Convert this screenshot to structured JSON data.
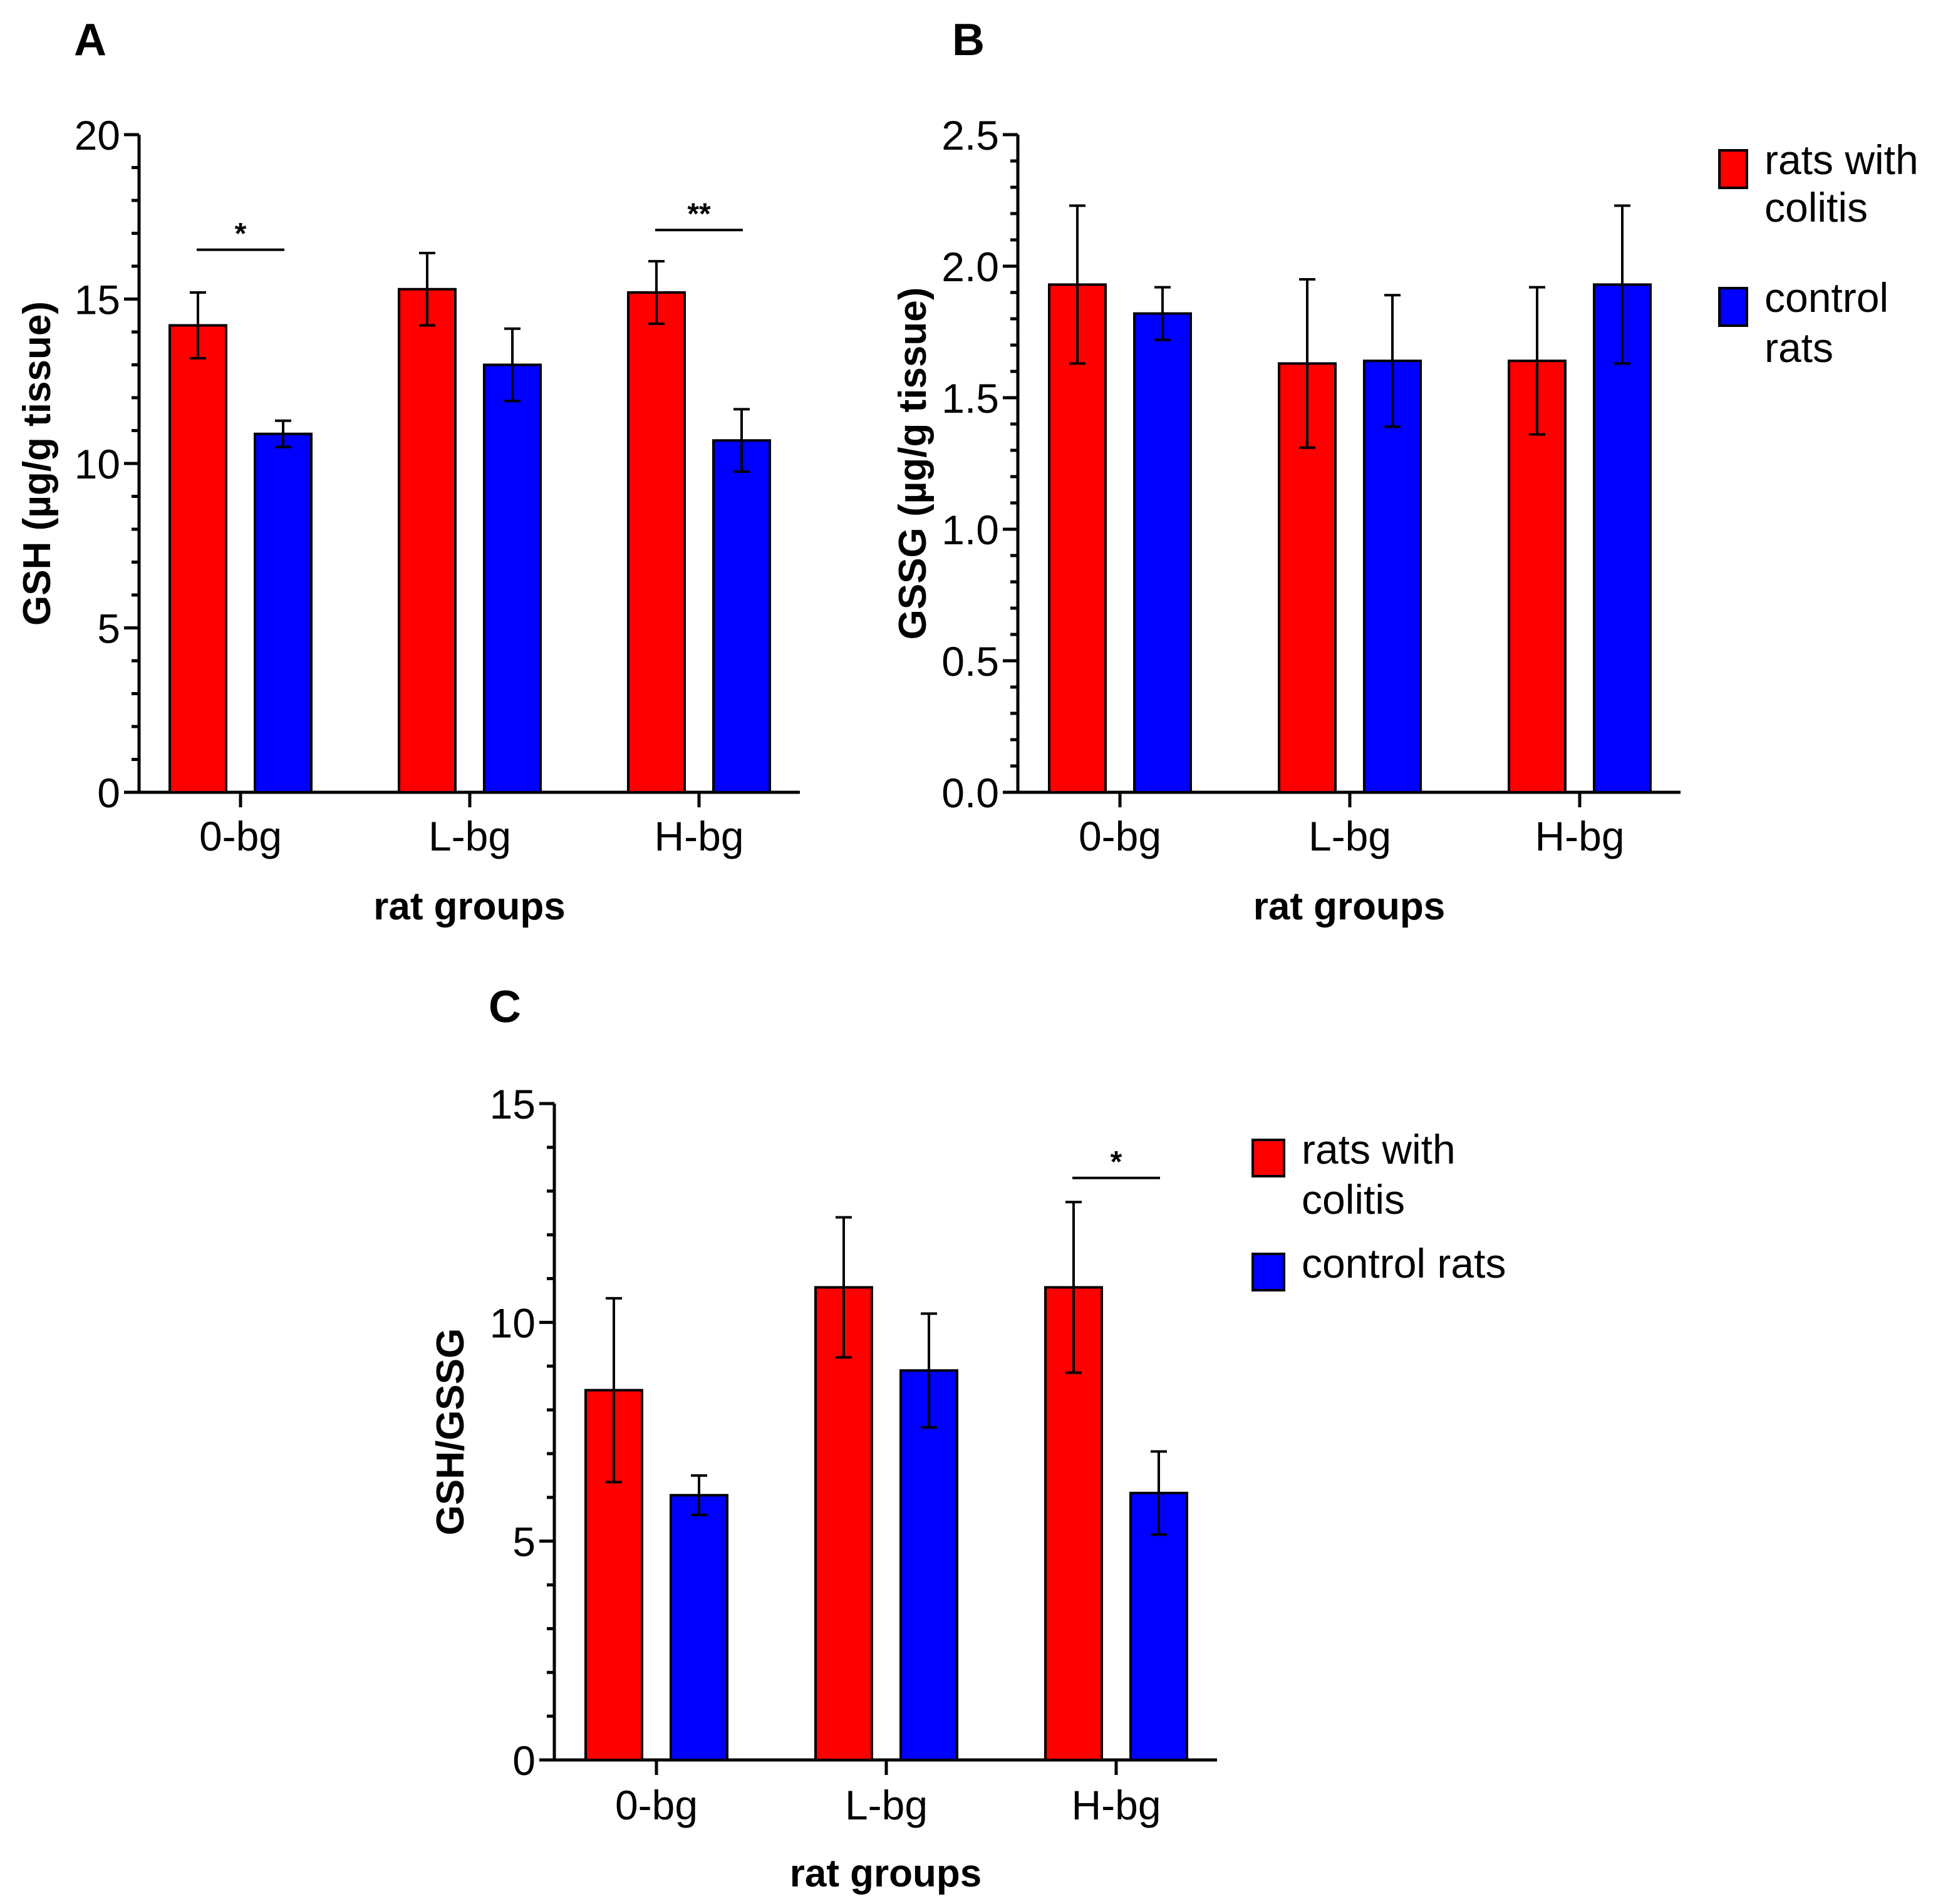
{
  "colors": {
    "colitis": "#ff0000",
    "control": "#0000ff"
  },
  "chart_data": [
    {
      "type": "bar",
      "panel": "A",
      "categories": [
        "0-bg",
        "L-bg",
        "H-bg"
      ],
      "series": [
        {
          "name": "rats with colitis",
          "values": [
            14.2,
            15.3,
            15.2
          ],
          "errors": [
            1.0,
            1.1,
            0.95
          ]
        },
        {
          "name": "control rats",
          "values": [
            10.9,
            13.0,
            10.7
          ],
          "errors": [
            0.4,
            1.1,
            0.95
          ]
        }
      ],
      "xlabel": "rat groups",
      "ylabel": "GSH (µg/g tissue)",
      "ylim": [
        0,
        20
      ],
      "yticks": [
        "0",
        "5",
        "10",
        "15",
        "20"
      ],
      "significance": [
        {
          "category": "0-bg",
          "label": "*",
          "y": 16.5
        },
        {
          "category": "H-bg",
          "label": "**",
          "y": 17.1
        }
      ],
      "legend": false
    },
    {
      "type": "bar",
      "panel": "B",
      "categories": [
        "0-bg",
        "L-bg",
        "H-bg"
      ],
      "series": [
        {
          "name": "rats with colitis",
          "values": [
            1.93,
            1.63,
            1.64
          ],
          "errors": [
            0.3,
            0.32,
            0.28
          ]
        },
        {
          "name": "control rats",
          "values": [
            1.82,
            1.64,
            1.93
          ],
          "errors": [
            0.1,
            0.25,
            0.3
          ]
        }
      ],
      "xlabel": "rat groups",
      "ylabel": "GSSG (µg/g tissue)",
      "ylim": [
        0,
        2.5
      ],
      "yticks": [
        "0.0",
        "0.5",
        "1.0",
        "1.5",
        "2.0",
        "2.5"
      ],
      "significance": [],
      "legend": true,
      "legend_labels": [
        [
          "rats with",
          "colitis"
        ],
        [
          "control",
          "rats"
        ]
      ]
    },
    {
      "type": "bar",
      "panel": "C",
      "categories": [
        "0-bg",
        "L-bg",
        "H-bg"
      ],
      "series": [
        {
          "name": "rats with colitis",
          "values": [
            8.45,
            10.8,
            10.8
          ],
          "errors": [
            2.1,
            1.6,
            1.95
          ]
        },
        {
          "name": "control rats",
          "values": [
            6.05,
            8.9,
            6.1
          ],
          "errors": [
            0.45,
            1.3,
            0.95
          ]
        }
      ],
      "xlabel": "rat groups",
      "ylabel": "GSH/GSSG",
      "ylim": [
        0,
        15
      ],
      "yticks": [
        "0",
        "5",
        "10",
        "15"
      ],
      "significance": [
        {
          "category": "H-bg",
          "label": "*",
          "y": 13.3
        }
      ],
      "legend": true,
      "legend_labels": [
        [
          "rats with",
          "colitis"
        ],
        [
          "control rats"
        ]
      ]
    }
  ]
}
